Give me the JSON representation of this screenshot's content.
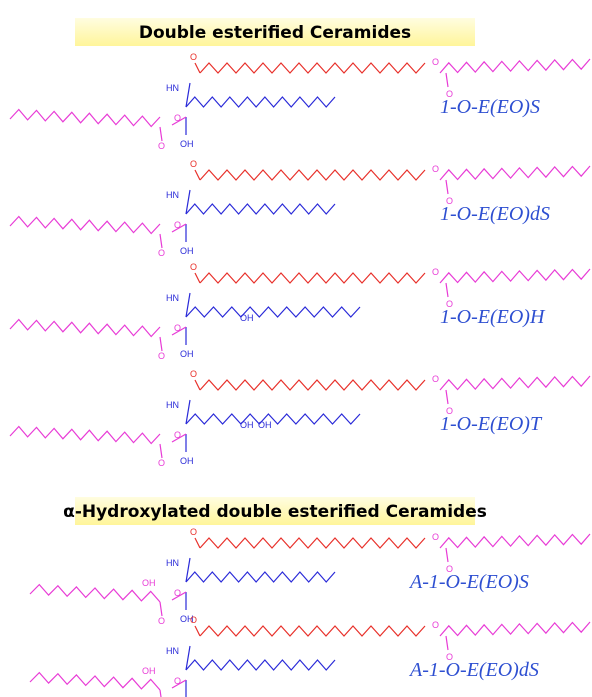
{
  "sections": [
    {
      "title": "Double esterified Ceramides",
      "structures": [
        {
          "label": "1-O-E(EO)S",
          "atoms": [
            "O",
            "O",
            "O",
            "HN",
            "O",
            "O",
            "OH"
          ]
        },
        {
          "label": "1-O-E(EO)dS",
          "atoms": [
            "O",
            "O",
            "O",
            "HN",
            "O",
            "O",
            "OH"
          ]
        },
        {
          "label": "1-O-E(EO)H",
          "atoms": [
            "O",
            "O",
            "O",
            "HN",
            "O",
            "O",
            "OH",
            "OH"
          ]
        },
        {
          "label": "1-O-E(EO)T",
          "atoms": [
            "O",
            "O",
            "O",
            "HN",
            "O",
            "O",
            "OH",
            "OH",
            "OH"
          ]
        }
      ]
    },
    {
      "title": "α-Hydroxylated double esterified Ceramides",
      "structures": [
        {
          "label": "A-1-O-E(EO)S",
          "atoms": [
            "O",
            "O",
            "O",
            "HN",
            "O",
            "O",
            "OH",
            "OH"
          ]
        },
        {
          "label": "A-1-O-E(EO)dS",
          "atoms": [
            "O",
            "O",
            "O",
            "HN",
            "O",
            "O",
            "OH",
            "OH"
          ]
        }
      ]
    }
  ]
}
